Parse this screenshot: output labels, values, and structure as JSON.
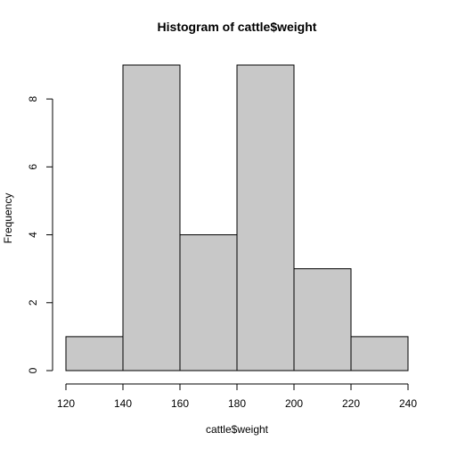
{
  "chart_data": {
    "type": "bar",
    "title": "Histogram of cattle$weight",
    "xlabel": "cattle$weight",
    "ylabel": "Frequency",
    "bins": [
      {
        "from": 120,
        "to": 140,
        "count": 1
      },
      {
        "from": 140,
        "to": 160,
        "count": 9
      },
      {
        "from": 160,
        "to": 180,
        "count": 4
      },
      {
        "from": 180,
        "to": 200,
        "count": 9
      },
      {
        "from": 200,
        "to": 220,
        "count": 3
      },
      {
        "from": 220,
        "to": 240,
        "count": 1
      }
    ],
    "xlim": [
      120,
      240
    ],
    "ylim": [
      0,
      9
    ],
    "xticks": [
      120,
      140,
      160,
      180,
      200,
      220,
      240
    ],
    "yticks": [
      0,
      2,
      4,
      6,
      8
    ],
    "bar_color": "#c8c8c8",
    "edge_color": "#000000",
    "grid": false
  }
}
